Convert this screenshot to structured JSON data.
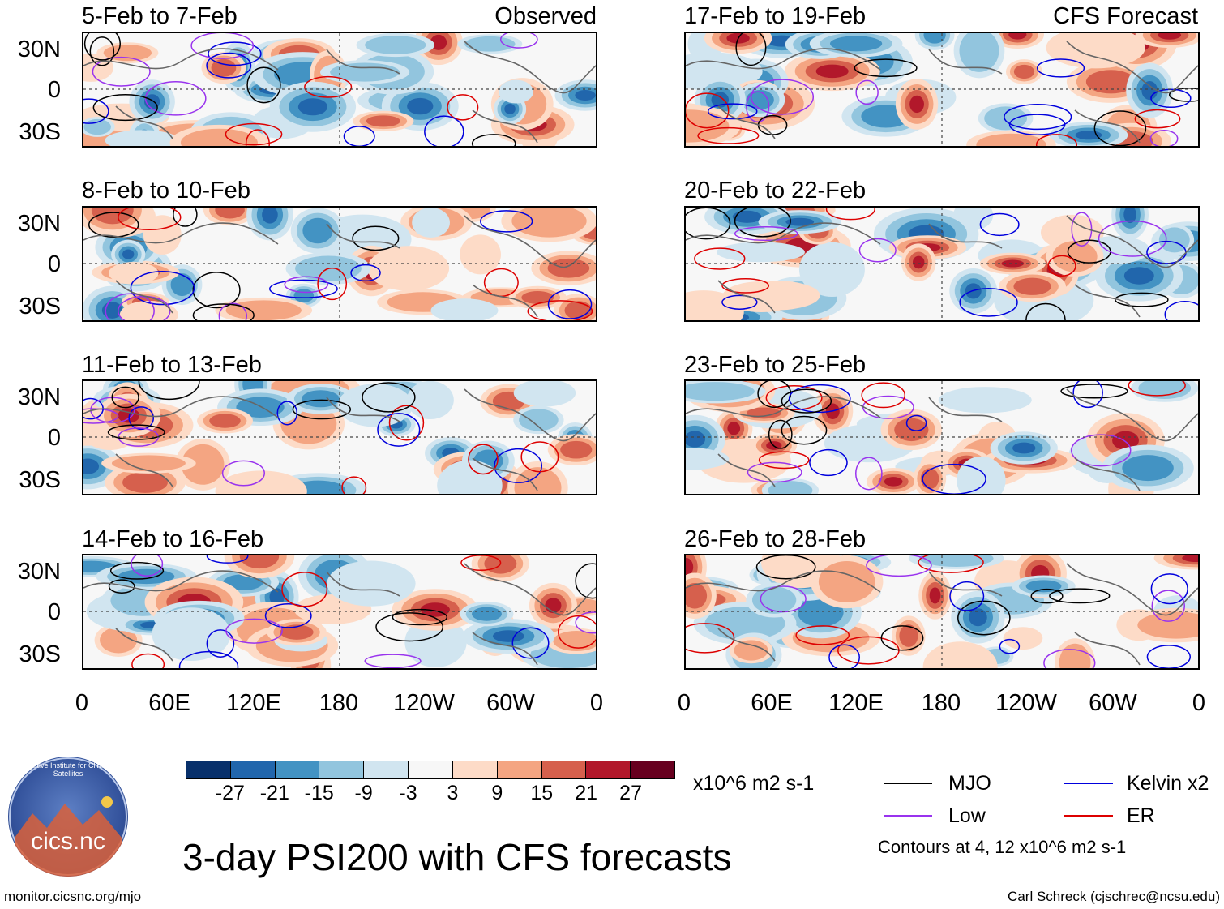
{
  "panels": {
    "observed_label": "Observed",
    "forecast_label": "CFS Forecast",
    "left": [
      {
        "title": "5-Feb to 7-Feb"
      },
      {
        "title": "8-Feb to 10-Feb"
      },
      {
        "title": "11-Feb to 13-Feb"
      },
      {
        "title": "14-Feb to 16-Feb"
      }
    ],
    "right": [
      {
        "title": "17-Feb to 19-Feb"
      },
      {
        "title": "20-Feb to 22-Feb"
      },
      {
        "title": "23-Feb to 25-Feb"
      },
      {
        "title": "26-Feb to 28-Feb"
      }
    ],
    "lat_labels": [
      "30N",
      "0",
      "30S"
    ],
    "lon_labels": [
      "0",
      "60E",
      "120E",
      "180",
      "120W",
      "60W",
      "0"
    ]
  },
  "colorbar": {
    "colors": [
      "#08306b",
      "#2166ac",
      "#4393c3",
      "#92c5de",
      "#d1e5f0",
      "#f7f7f7",
      "#fddbc7",
      "#f4a582",
      "#d6604d",
      "#b2182b",
      "#67001f"
    ],
    "labels": [
      "-27",
      "-21",
      "-15",
      "-9",
      "-3",
      "3",
      "9",
      "15",
      "21",
      "27"
    ],
    "units": "x10^6 m2 s-1"
  },
  "legend": {
    "items": [
      {
        "label": "MJO",
        "color": "#000000"
      },
      {
        "label": "Kelvin x2",
        "color": "#0000dd"
      },
      {
        "label": "Low",
        "color": "#9933ee"
      },
      {
        "label": "ER",
        "color": "#dd0000"
      }
    ],
    "contours_note": "Contours at 4, 12 x10^6 m2 s-1"
  },
  "title": "3-day PSI200 with CFS forecasts",
  "logo": {
    "text": "cics.nc",
    "ring_text": "Cooperative Institute for Climate and Satellites"
  },
  "footer": {
    "left": "monitor.cicsnc.org/mjo",
    "right": "Carl Schreck (cjschrec@ncsu.edu)"
  }
}
